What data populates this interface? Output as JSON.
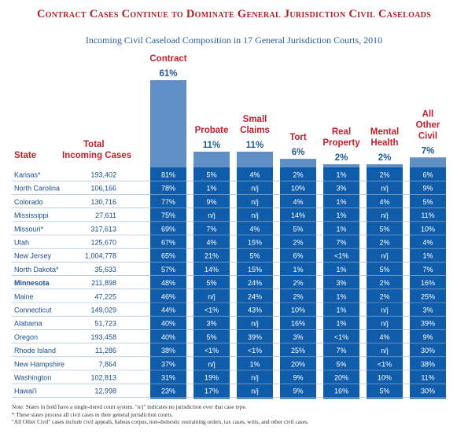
{
  "title": "Contract Cases Continue to Dominate General Jurisdiction Civil Caseloads",
  "subtitle": "Incoming Civil Caseload Composition in 17 General Jurisdiction Courts, 2010",
  "colors": {
    "title_red": "#b3202a",
    "subtitle_blue": "#2a5fa0",
    "column_blue": "#0f5cab",
    "bar_light": "#5f8fc4",
    "header_red": "#c0202c",
    "state_blue": "#1a4f8f",
    "pct_blue": "#1f5a99"
  },
  "headers": {
    "state": "State",
    "total": [
      "Total",
      "Incoming Cases"
    ]
  },
  "chart_data": {
    "type": "bar",
    "categories": [
      "Contract",
      "Probate",
      "Small Claims",
      "Tort",
      "Real Property",
      "Mental Health",
      "All Other Civil"
    ],
    "category_lines": [
      [
        "Contract"
      ],
      [
        "Probate"
      ],
      [
        "Small",
        "Claims"
      ],
      [
        "Tort"
      ],
      [
        "Real",
        "Property"
      ],
      [
        "Mental",
        "Health"
      ],
      [
        "All",
        "Other",
        "Civil"
      ]
    ],
    "values": [
      61,
      11,
      11,
      6,
      2,
      2,
      7
    ],
    "value_labels": [
      "61%",
      "11%",
      "11%",
      "6%",
      "2%",
      "2%",
      "7%"
    ],
    "ylim": [
      0,
      61
    ]
  },
  "rows": [
    {
      "state": "Kansas*",
      "bold": false,
      "total": "193,402",
      "cells": [
        "81%",
        "5%",
        "4%",
        "2%",
        "1%",
        "2%",
        "6%"
      ]
    },
    {
      "state": "North Carolina",
      "bold": false,
      "total": "106,166",
      "cells": [
        "78%",
        "1%",
        "n/j",
        "10%",
        "3%",
        "n/j",
        "9%"
      ]
    },
    {
      "state": "Colorado",
      "bold": false,
      "total": "130,716",
      "cells": [
        "77%",
        "9%",
        "n/j",
        "4%",
        "1%",
        "4%",
        "5%"
      ]
    },
    {
      "state": "Mississippi",
      "bold": false,
      "total": "27,611",
      "cells": [
        "75%",
        "n/j",
        "n/j",
        "14%",
        "1%",
        "n/j",
        "11%"
      ]
    },
    {
      "state": "Missouri*",
      "bold": false,
      "total": "317,613",
      "cells": [
        "69%",
        "7%",
        "4%",
        "5%",
        "1%",
        "5%",
        "10%"
      ]
    },
    {
      "state": "Utah",
      "bold": false,
      "total": "125,670",
      "cells": [
        "67%",
        "4%",
        "15%",
        "2%",
        "7%",
        "2%",
        "4%"
      ]
    },
    {
      "state": "New Jersey",
      "bold": false,
      "total": "1,004,778",
      "cells": [
        "65%",
        "21%",
        "5%",
        "6%",
        "<1%",
        "n/j",
        "1%"
      ]
    },
    {
      "state": "North Dakota*",
      "bold": false,
      "total": "35,633",
      "cells": [
        "57%",
        "14%",
        "15%",
        "1%",
        "1%",
        "5%",
        "7%"
      ]
    },
    {
      "state": "Minnesota",
      "bold": true,
      "total": "211,898",
      "cells": [
        "48%",
        "5%",
        "24%",
        "2%",
        "3%",
        "2%",
        "16%"
      ]
    },
    {
      "state": "Maine",
      "bold": false,
      "total": "47,225",
      "cells": [
        "46%",
        "n/j",
        "24%",
        "2%",
        "1%",
        "2%",
        "25%"
      ]
    },
    {
      "state": "Connecticut",
      "bold": false,
      "total": "149,029",
      "cells": [
        "44%",
        "<1%",
        "43%",
        "10%",
        "1%",
        "n/j",
        "3%"
      ]
    },
    {
      "state": "Alabama",
      "bold": false,
      "total": "51,723",
      "cells": [
        "40%",
        "3%",
        "n/j",
        "16%",
        "1%",
        "n/j",
        "39%"
      ]
    },
    {
      "state": "Oregon",
      "bold": false,
      "total": "193,458",
      "cells": [
        "40%",
        "5%",
        "39%",
        "3%",
        "<1%",
        "4%",
        "9%"
      ]
    },
    {
      "state": "Rhode Island",
      "bold": false,
      "total": "11,286",
      "cells": [
        "38%",
        "<1%",
        "<1%",
        "25%",
        "7%",
        "n/j",
        "30%"
      ]
    },
    {
      "state": "New Hampshire",
      "bold": false,
      "total": "7,864",
      "cells": [
        "37%",
        "n/j",
        "1%",
        "20%",
        "5%",
        "<1%",
        "38%"
      ]
    },
    {
      "state": "Washington",
      "bold": false,
      "total": "102,813",
      "cells": [
        "31%",
        "19%",
        "n/j",
        "9%",
        "20%",
        "10%",
        "11%"
      ]
    },
    {
      "state": "Hawai'i",
      "bold": false,
      "total": "12,998",
      "cells": [
        "23%",
        "17%",
        "n/j",
        "9%",
        "16%",
        "5%",
        "30%"
      ]
    }
  ],
  "notes": [
    "Note: States in bold have a single-tiered court system.  \"n/j\" indicates no jurisdiction over that case type.",
    "* These states process all civil cases in their general jurisdiction courts.",
    "\"All Other Civil\" cases include civil appeals, habeas corpus, non-domestic restraining orders, tax cases, writs, and other civil cases."
  ]
}
